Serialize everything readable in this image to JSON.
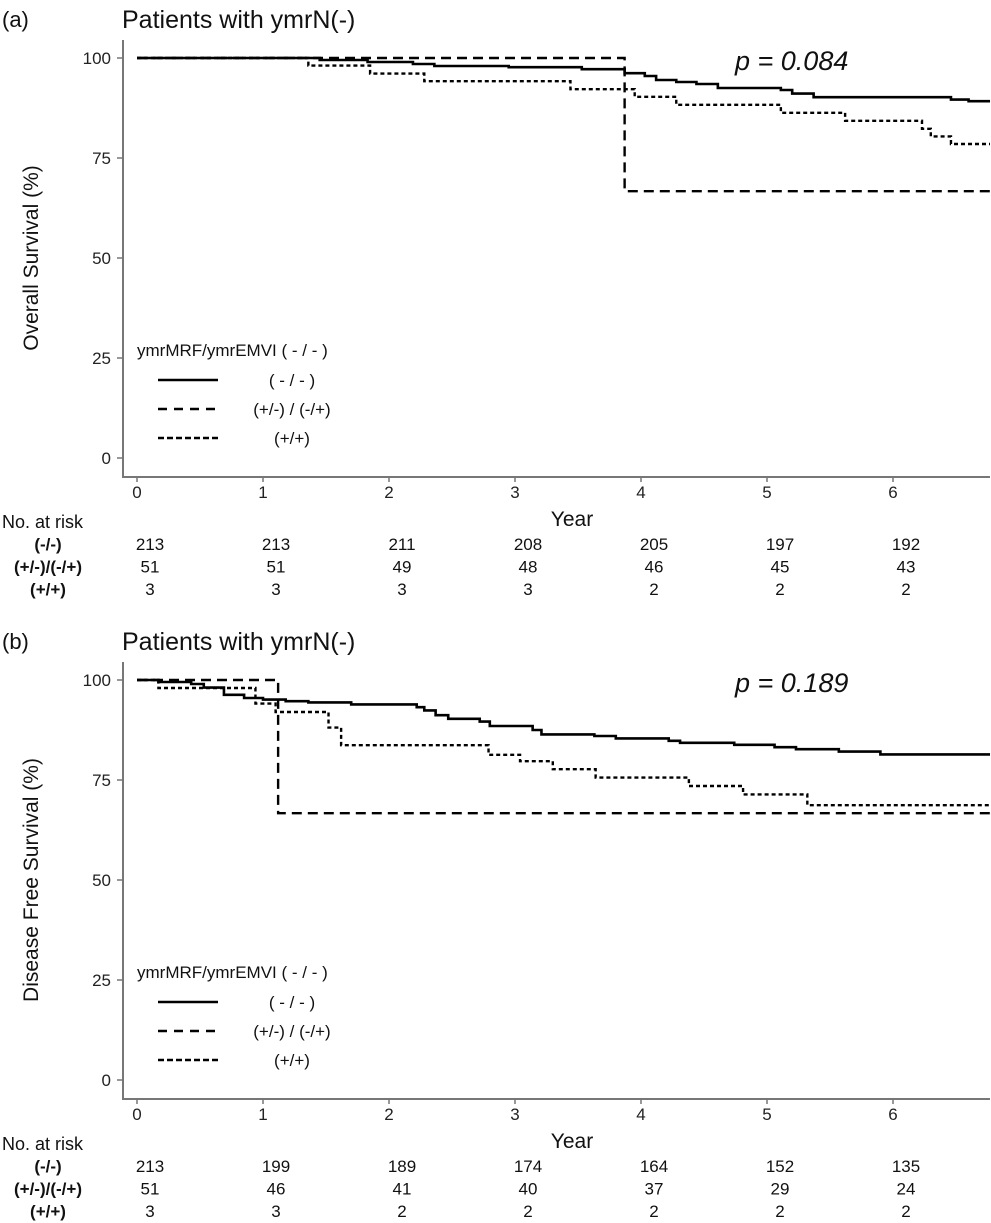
{
  "chart_data": [
    {
      "type": "line",
      "panel_label": "(a)",
      "title": "Patients with ymrN(-)",
      "ylabel": "Overall Survival (%)",
      "xlabel": "Year",
      "xlim": [
        0,
        6.77
      ],
      "ylim": [
        0,
        100
      ],
      "xticks": [
        "0",
        "1",
        "2",
        "3",
        "4",
        "5",
        "6"
      ],
      "yticks": [
        "0",
        "25",
        "50",
        "75",
        "100"
      ],
      "p_value": "p = 0.084",
      "legend": {
        "title": "ymrMRF/ymrEMVI ( - / - )",
        "placement": "lower-left",
        "items": [
          {
            "label": "( - / - )",
            "style": "solid"
          },
          {
            "label": "(+/-) / (-/+)",
            "style": "longdash"
          },
          {
            "label": "(+/+)",
            "style": "shortdash"
          }
        ]
      },
      "series": [
        {
          "name": "(-/-)",
          "style": "solid",
          "steps": [
            [
              0,
              100
            ],
            [
              1.45,
              99.5
            ],
            [
              1.83,
              99
            ],
            [
              2.19,
              98.5
            ],
            [
              2.36,
              98
            ],
            [
              2.95,
              97.7
            ],
            [
              3.53,
              97.2
            ],
            [
              3.87,
              96.2
            ],
            [
              4.03,
              95.5
            ],
            [
              4.12,
              94.5
            ],
            [
              4.28,
              94
            ],
            [
              4.44,
              93.5
            ],
            [
              4.61,
              92.5
            ],
            [
              5.11,
              92
            ],
            [
              5.2,
              91.1
            ],
            [
              5.37,
              90.2
            ],
            [
              6.46,
              89.6
            ],
            [
              6.6,
              89.2
            ]
          ]
        },
        {
          "name": "(+/-)/(-/+)",
          "style": "dotted",
          "steps": [
            [
              0,
              100
            ],
            [
              1.36,
              98.1
            ],
            [
              1.85,
              96.1
            ],
            [
              2.28,
              94.2
            ],
            [
              3.44,
              92.2
            ],
            [
              3.95,
              90.3
            ],
            [
              4.28,
              88.3
            ],
            [
              5.11,
              86.3
            ],
            [
              5.62,
              84.3
            ],
            [
              6.23,
              82.3
            ],
            [
              6.3,
              80.4
            ],
            [
              6.46,
              78.5
            ]
          ]
        },
        {
          "name": "(+/+)",
          "style": "dashed",
          "steps": [
            [
              0,
              100
            ],
            [
              3.87,
              66.7
            ]
          ]
        }
      ],
      "risk_table": {
        "header": "No. at risk",
        "rows": [
          {
            "label": "(-/-)",
            "values": [
              "213",
              "213",
              "211",
              "208",
              "205",
              "197",
              "192"
            ]
          },
          {
            "label": "(+/-)/(-/+)",
            "values": [
              "51",
              "51",
              "49",
              "48",
              "46",
              "45",
              "43"
            ]
          },
          {
            "label": "(+/+)",
            "values": [
              "3",
              "3",
              "3",
              "3",
              "2",
              "2",
              "2"
            ]
          }
        ]
      }
    },
    {
      "type": "line",
      "panel_label": "(b)",
      "title": "Patients with ymrN(-)",
      "ylabel": "Disease Free Survival (%)",
      "xlabel": "Year",
      "xlim": [
        0,
        6.77
      ],
      "ylim": [
        0,
        100
      ],
      "xticks": [
        "0",
        "1",
        "2",
        "3",
        "4",
        "5",
        "6"
      ],
      "yticks": [
        "0",
        "25",
        "50",
        "75",
        "100"
      ],
      "p_value": "p = 0.189",
      "legend": {
        "title": "ymrMRF/ymrEMVI ( - / - )",
        "placement": "lower-left",
        "items": [
          {
            "label": "( - / - )",
            "style": "solid"
          },
          {
            "label": "(+/-) / (-/+)",
            "style": "longdash"
          },
          {
            "label": "(+/+)",
            "style": "shortdash"
          }
        ]
      },
      "series": [
        {
          "name": "(-/-)",
          "style": "solid",
          "steps": [
            [
              0,
              100
            ],
            [
              0.17,
              99.5
            ],
            [
              0.43,
              99
            ],
            [
              0.53,
              98.1
            ],
            [
              0.69,
              96.3
            ],
            [
              0.85,
              95.5
            ],
            [
              1.0,
              95.1
            ],
            [
              1.18,
              94.7
            ],
            [
              1.36,
              94.4
            ],
            [
              1.7,
              93.9
            ],
            [
              2.22,
              93.2
            ],
            [
              2.28,
              92.4
            ],
            [
              2.37,
              91.2
            ],
            [
              2.47,
              90.3
            ],
            [
              2.72,
              89.6
            ],
            [
              2.8,
              88.5
            ],
            [
              3.14,
              87.5
            ],
            [
              3.21,
              86.4
            ],
            [
              3.63,
              86
            ],
            [
              3.8,
              85.4
            ],
            [
              4.22,
              84.8
            ],
            [
              4.31,
              84.3
            ],
            [
              4.74,
              83.8
            ],
            [
              5.06,
              83.2
            ],
            [
              5.23,
              82.7
            ],
            [
              5.57,
              82.1
            ],
            [
              5.9,
              81.4
            ]
          ]
        },
        {
          "name": "(+/-)/(-/+)",
          "style": "dotted",
          "steps": [
            [
              0,
              100
            ],
            [
              0.17,
              98
            ],
            [
              0.94,
              94.1
            ],
            [
              1.1,
              92
            ],
            [
              1.52,
              88.1
            ],
            [
              1.62,
              83.7
            ],
            [
              2.79,
              81.3
            ],
            [
              3.04,
              79.7
            ],
            [
              3.3,
              77.7
            ],
            [
              3.64,
              75.6
            ],
            [
              4.38,
              73.5
            ],
            [
              4.81,
              71.4
            ],
            [
              5.32,
              68.7
            ]
          ]
        },
        {
          "name": "(+/+)",
          "style": "dashed",
          "steps": [
            [
              0,
              100
            ],
            [
              1.12,
              66.7
            ]
          ]
        }
      ],
      "risk_table": {
        "header": "No. at risk",
        "rows": [
          {
            "label": "(-/-)",
            "values": [
              "213",
              "199",
              "189",
              "174",
              "164",
              "152",
              "135"
            ]
          },
          {
            "label": "(+/-)/(-/+)",
            "values": [
              "51",
              "46",
              "41",
              "40",
              "37",
              "29",
              "24"
            ]
          },
          {
            "label": "(+/+)",
            "values": [
              "3",
              "3",
              "2",
              "2",
              "2",
              "2",
              "2"
            ]
          }
        ]
      }
    }
  ]
}
